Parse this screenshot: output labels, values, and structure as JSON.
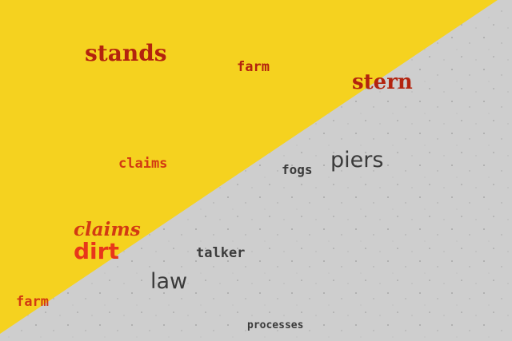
{
  "colors": {
    "yellow": "#f5d21f",
    "concrete": "#cfcfcf",
    "red": "#d23a12",
    "darkred": "#b3230e",
    "dark": "#3b3b3b"
  },
  "words": {
    "stands": "stands",
    "farm_top": "farm",
    "stern": "stern",
    "claims_mid": "claims",
    "fogs": "fogs",
    "piers": "piers",
    "claims_script": "claims",
    "dirt": "dirt",
    "talker": "talker",
    "law": "law",
    "farm_bottom": "farm",
    "processes": "processes"
  }
}
